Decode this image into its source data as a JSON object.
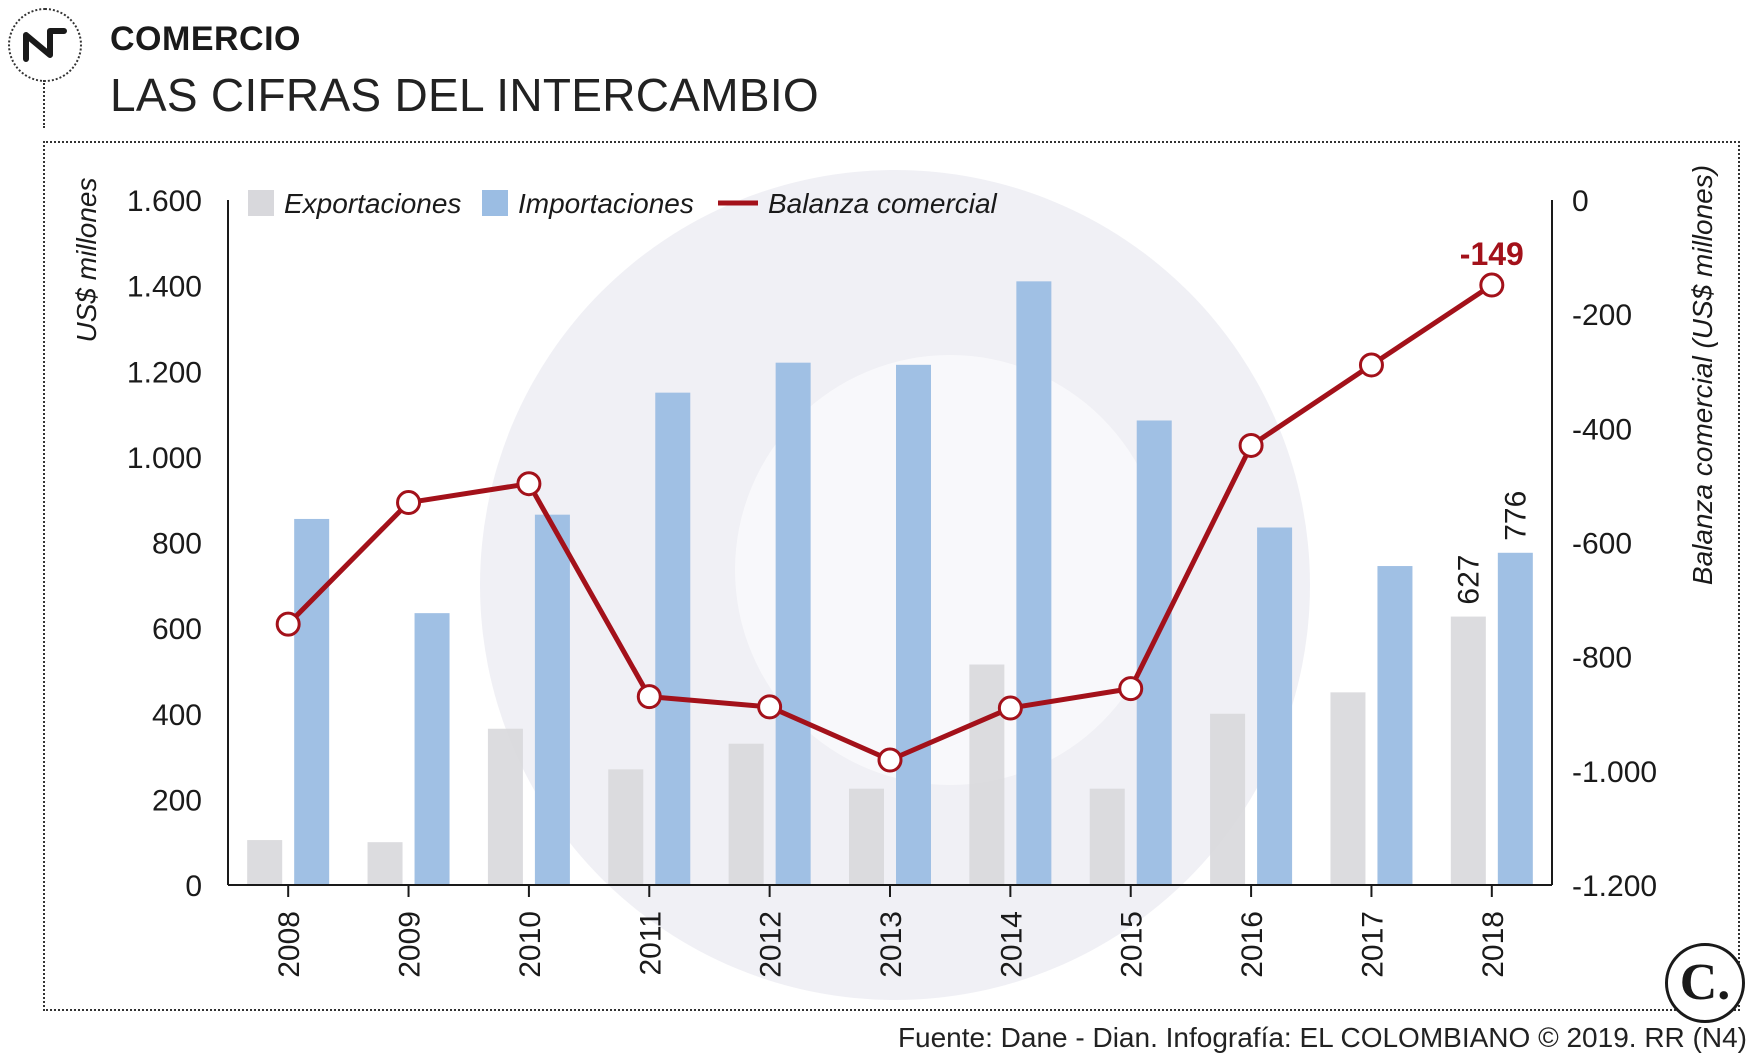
{
  "header": {
    "section": "COMERCIO",
    "title": "LAS CIFRAS DEL INTERCAMBIO"
  },
  "footer": {
    "source": "Fuente: Dane - Dian. Infografía: EL COLOMBIANO © 2019. RR (N4)"
  },
  "colors": {
    "exports": "#d8d8dc",
    "imports": "#9bbde3",
    "balance": "#a3111a",
    "watermark": "#ebebf1"
  },
  "icons": [
    "trend-logo-icon",
    "el-colombiano-logo-icon",
    "watermark-logo-icon"
  ],
  "chart_data": {
    "type": "bar",
    "categories": [
      "2008",
      "2009",
      "2010",
      "2011",
      "2012",
      "2013",
      "2014",
      "2015",
      "2016",
      "2017",
      "2018"
    ],
    "series": [
      {
        "name": "Exportaciones",
        "type": "bar",
        "axis": "left",
        "values": [
          105,
          100,
          365,
          270,
          330,
          225,
          515,
          225,
          400,
          450,
          627
        ]
      },
      {
        "name": "Importaciones",
        "type": "bar",
        "axis": "left",
        "values": [
          855,
          635,
          865,
          1150,
          1220,
          1215,
          1410,
          1085,
          835,
          745,
          776
        ]
      },
      {
        "name": "Balanza comercial",
        "type": "line",
        "axis": "right",
        "values": [
          -743,
          -530,
          -497,
          -870,
          -888,
          -981,
          -890,
          -856,
          -430,
          -289,
          -149
        ]
      }
    ],
    "ylabel": "US$ millones",
    "y2label": "Balanza comercial (US$ millones)",
    "ylim": [
      0,
      1600
    ],
    "y2lim": [
      -1200,
      0
    ],
    "yticks": [
      {
        "value": 0,
        "label": "0"
      },
      {
        "value": 200,
        "label": "200"
      },
      {
        "value": 400,
        "label": "400"
      },
      {
        "value": 600,
        "label": "600"
      },
      {
        "value": 800,
        "label": "800"
      },
      {
        "value": 1000,
        "label": "1.000"
      },
      {
        "value": 1200,
        "label": "1.200"
      },
      {
        "value": 1400,
        "label": "1.400"
      },
      {
        "value": 1600,
        "label": "1.600"
      }
    ],
    "y2ticks": [
      {
        "value": 0,
        "label": "0"
      },
      {
        "value": -200,
        "label": "-200"
      },
      {
        "value": -400,
        "label": "-400"
      },
      {
        "value": -600,
        "label": "-600"
      },
      {
        "value": -800,
        "label": "-800"
      },
      {
        "value": -1000,
        "label": "-1.000"
      },
      {
        "value": -1200,
        "label": "-1.200"
      }
    ],
    "annotations": [
      {
        "series": "Exportaciones",
        "category": "2018",
        "label": "627"
      },
      {
        "series": "Importaciones",
        "category": "2018",
        "label": "776"
      },
      {
        "series": "Balanza comercial",
        "category": "2018",
        "label": "-149"
      }
    ],
    "legend": "top-left",
    "grid": false
  }
}
